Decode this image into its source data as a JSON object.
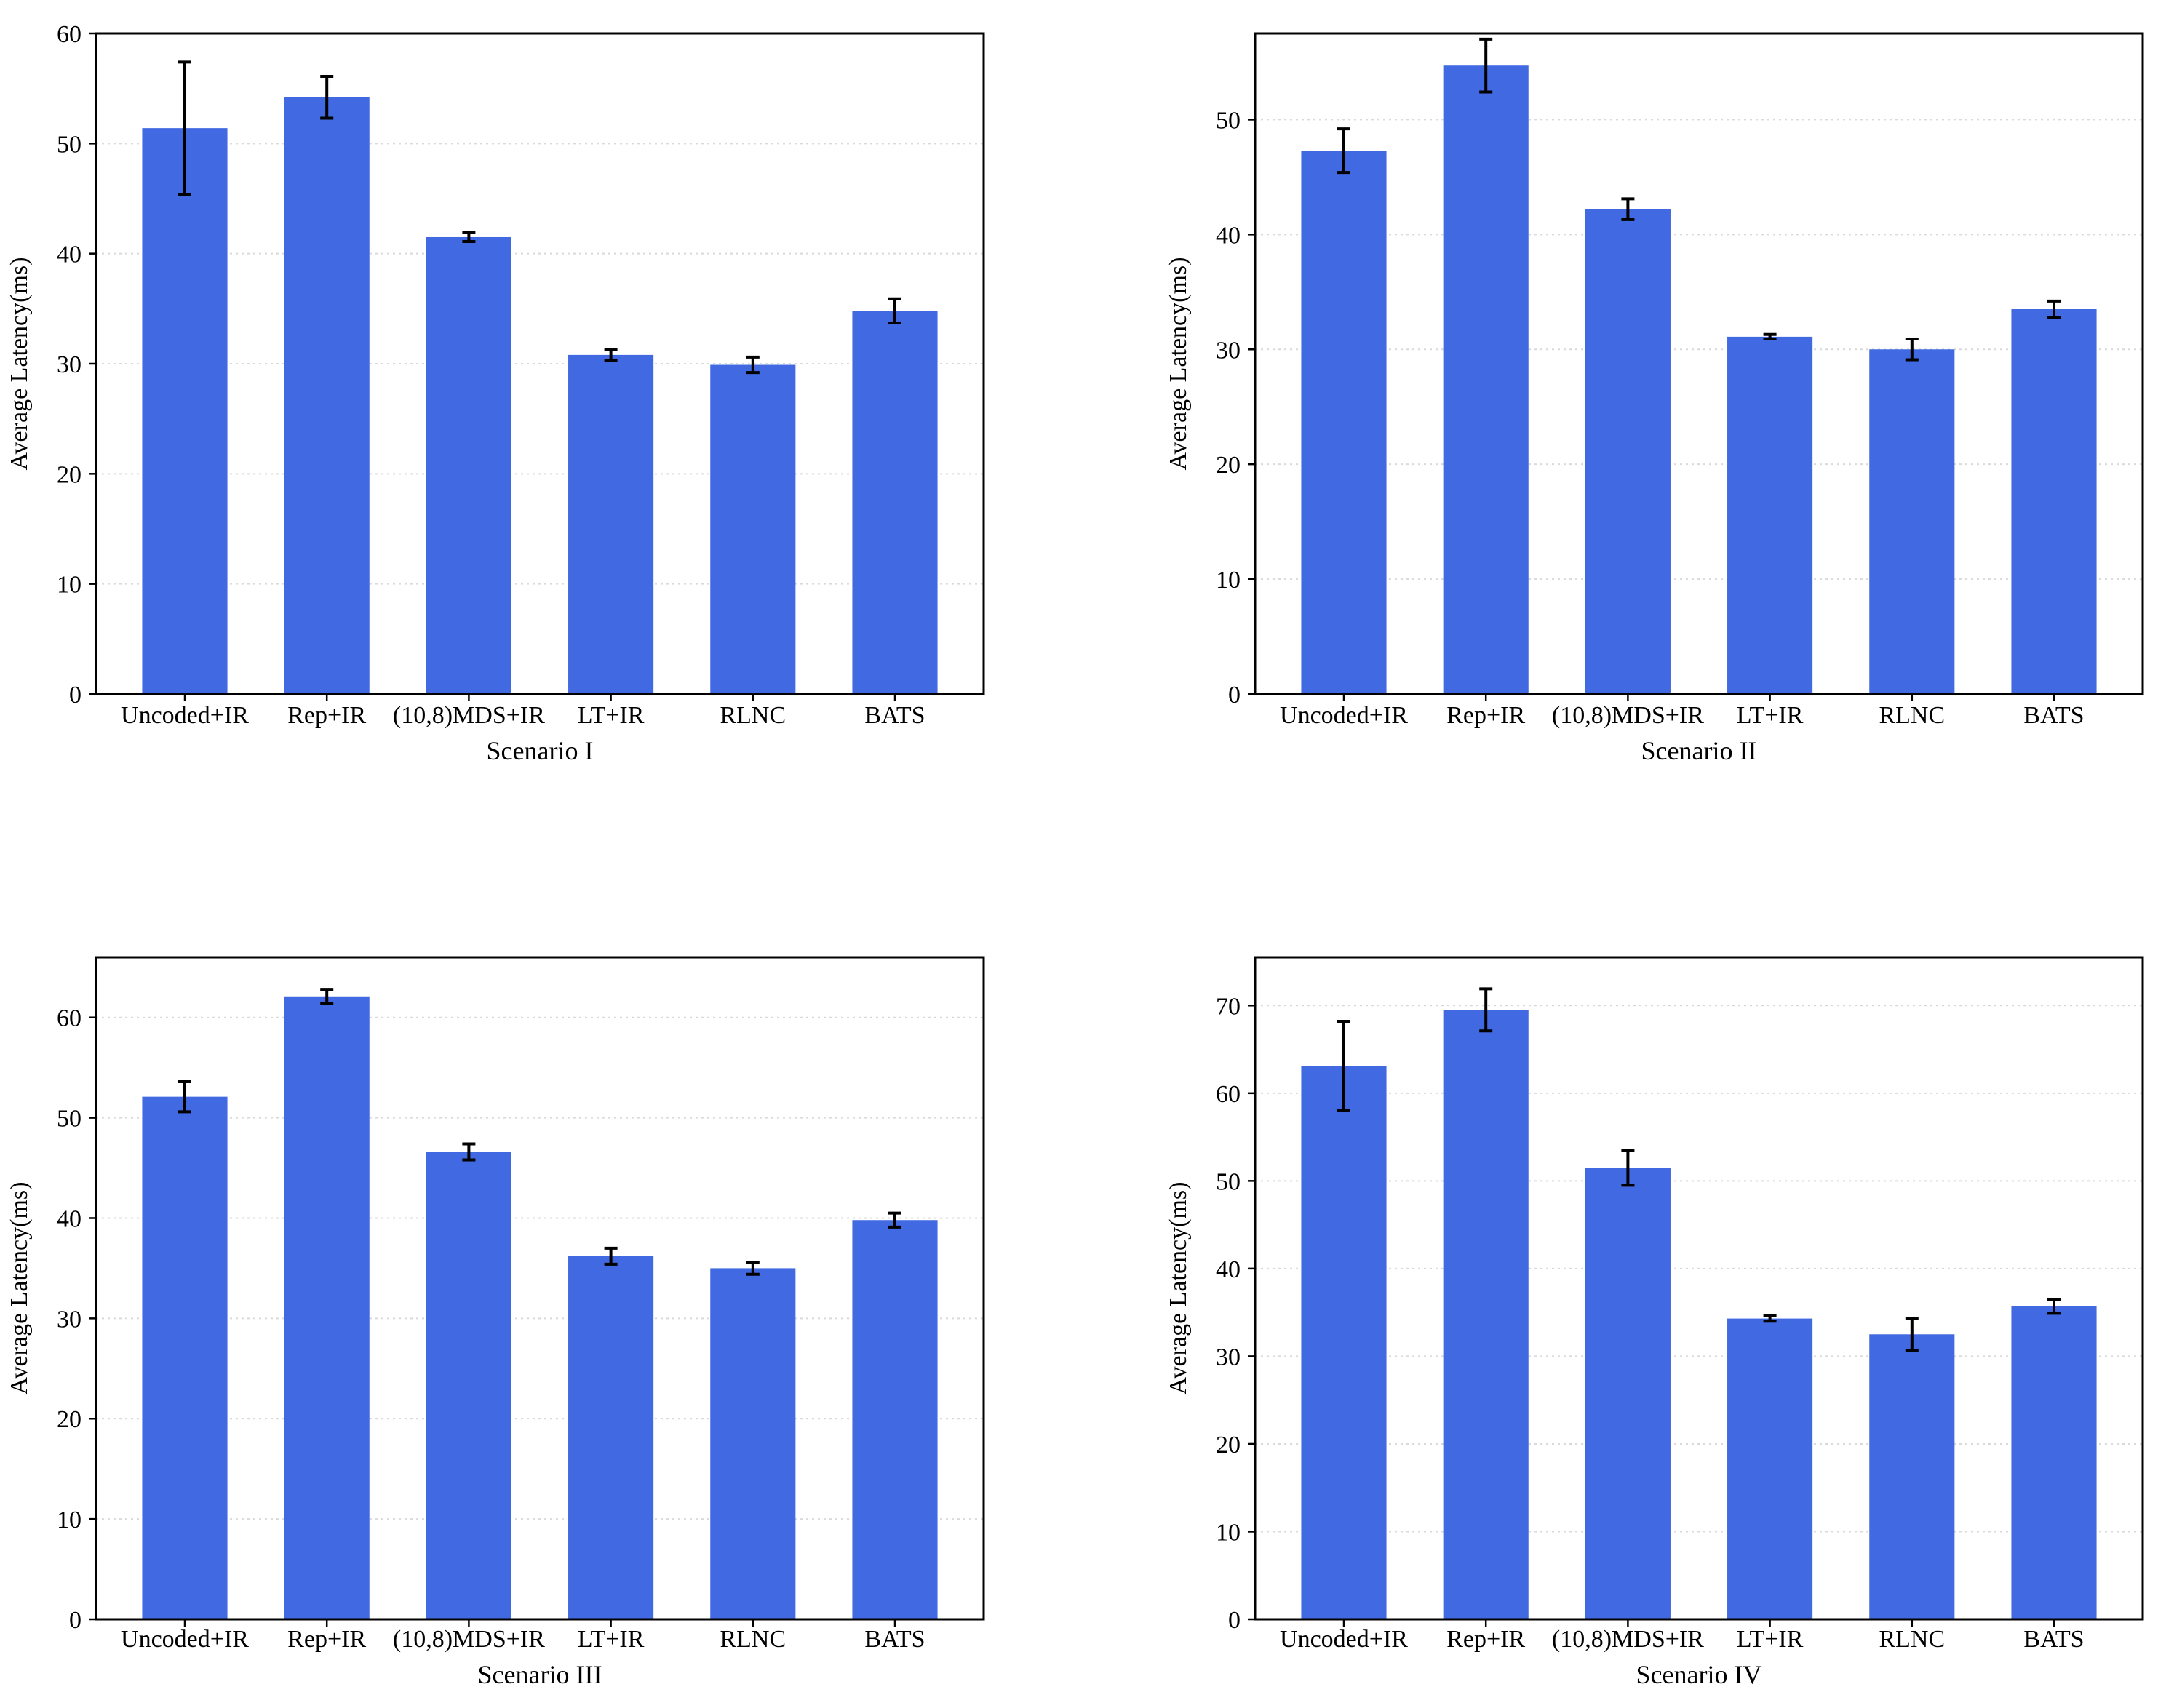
{
  "colors": {
    "bar": "#4169e1",
    "error": "#000000",
    "grid": "#d9d9d9",
    "frame": "#000000"
  },
  "charts": [
    {
      "type": "bar",
      "title": "",
      "xlabel": "Scenario I",
      "ylabel": "Average Latency(ms)",
      "ylim": [
        0,
        60
      ],
      "yticks": [
        0,
        10,
        20,
        30,
        40,
        50,
        60
      ],
      "yticks_labels": [
        "0",
        "10",
        "20",
        "30",
        "40",
        "50",
        "60"
      ],
      "categories": [
        "Uncoded+IR",
        "Rep+IR",
        "(10,8)MDS+IR",
        "LT+IR",
        "RLNC",
        "BATS"
      ],
      "values": [
        51.4,
        54.2,
        41.5,
        30.8,
        29.9,
        34.8
      ],
      "errors": [
        6.0,
        1.9,
        0.4,
        0.5,
        0.7,
        1.1
      ],
      "grid": "y-dotted"
    },
    {
      "type": "bar",
      "title": "",
      "xlabel": "Scenario II",
      "ylabel": "Average Latency(ms)",
      "ylim": [
        0,
        57.5
      ],
      "yticks": [
        0,
        10,
        20,
        30,
        40,
        50
      ],
      "yticks_labels": [
        "0",
        "10",
        "20",
        "30",
        "40",
        "50"
      ],
      "categories": [
        "Uncoded+IR",
        "Rep+IR",
        "(10,8)MDS+IR",
        "LT+IR",
        "RLNC",
        "BATS"
      ],
      "values": [
        47.3,
        54.7,
        42.2,
        31.1,
        30.0,
        33.5
      ],
      "errors": [
        1.9,
        2.3,
        0.9,
        0.2,
        0.9,
        0.7
      ],
      "grid": "y-dotted"
    },
    {
      "type": "bar",
      "title": "",
      "xlabel": "Scenario III",
      "ylabel": "Average Latency(ms)",
      "ylim": [
        0,
        66
      ],
      "yticks": [
        0,
        10,
        20,
        30,
        40,
        50,
        60
      ],
      "yticks_labels": [
        "0",
        "10",
        "20",
        "30",
        "40",
        "50",
        "60"
      ],
      "categories": [
        "Uncoded+IR",
        "Rep+IR",
        "(10,8)MDS+IR",
        "LT+IR",
        "RLNC",
        "BATS"
      ],
      "values": [
        52.1,
        62.1,
        46.6,
        36.2,
        35.0,
        39.8
      ],
      "errors": [
        1.5,
        0.7,
        0.8,
        0.8,
        0.6,
        0.7
      ],
      "grid": "y-dotted"
    },
    {
      "type": "bar",
      "title": "",
      "xlabel": "Scenario IV",
      "ylabel": "Average Latency(ms)",
      "ylim": [
        0,
        75.5
      ],
      "yticks": [
        0,
        10,
        20,
        30,
        40,
        50,
        60,
        70
      ],
      "yticks_labels": [
        "0",
        "10",
        "20",
        "30",
        "40",
        "50",
        "60",
        "70"
      ],
      "categories": [
        "Uncoded+IR",
        "Rep+IR",
        "(10,8)MDS+IR",
        "LT+IR",
        "RLNC",
        "BATS"
      ],
      "values": [
        63.1,
        69.5,
        51.5,
        34.3,
        32.5,
        35.7
      ],
      "errors": [
        5.1,
        2.4,
        2.0,
        0.3,
        1.8,
        0.8
      ],
      "grid": "y-dotted"
    }
  ]
}
